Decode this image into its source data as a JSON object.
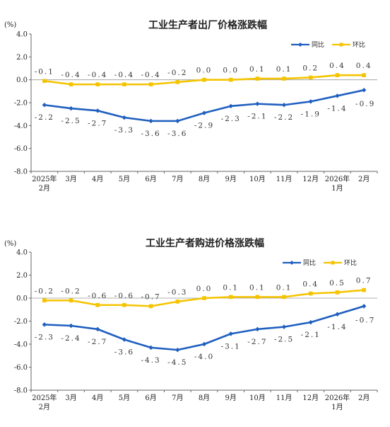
{
  "colors": {
    "yoy": "#1f5fbf",
    "mom": "#f5c400",
    "axis": "#666666",
    "zero_line": "#999999"
  },
  "chart_data": [
    {
      "type": "line",
      "title": "工业生产者出厂价格涨跌幅",
      "unit": "(%)",
      "ylim": [
        -8.0,
        4.0
      ],
      "yticks": [
        "4.0",
        "2.0",
        "0.0",
        "-2.0",
        "-4.0",
        "-6.0",
        "-8.0"
      ],
      "ytick_values": [
        4,
        2,
        0,
        -2,
        -4,
        -6,
        -8
      ],
      "categories": [
        [
          "2025年",
          "2月"
        ],
        [
          "3月"
        ],
        [
          "4月"
        ],
        [
          "5月"
        ],
        [
          "6月"
        ],
        [
          "7月"
        ],
        [
          "8月"
        ],
        [
          "9月"
        ],
        [
          "10月"
        ],
        [
          "11月"
        ],
        [
          "12月"
        ],
        [
          "2026年",
          "1月"
        ],
        [
          "2月"
        ]
      ],
      "legend_position": "top-right",
      "series": [
        {
          "name": "同比",
          "values": [
            -2.2,
            -2.5,
            -2.7,
            -3.3,
            -3.6,
            -3.6,
            -2.9,
            -2.3,
            -2.1,
            -2.2,
            -1.9,
            -1.4,
            -0.9
          ]
        },
        {
          "name": "环比",
          "values": [
            -0.1,
            -0.4,
            -0.4,
            -0.4,
            -0.4,
            -0.2,
            0.0,
            0.0,
            0.1,
            0.1,
            0.2,
            0.4,
            0.4
          ]
        }
      ],
      "point_labels": {
        "同比": [
          "-2.2",
          "-2.5",
          "-2.7",
          "-3.3",
          "-3.6",
          "-3.6",
          "-2.9",
          "-2.3",
          "-2.1",
          "-2.2",
          "-1.9",
          "-1.4",
          "-0.9"
        ],
        "环比": [
          "-0.1",
          "-0.4",
          "-0.4",
          "-0.4",
          "-0.4",
          "-0.2",
          "0.0",
          "0.0",
          "0.1",
          "0.1",
          "0.2",
          "0.4",
          "0.4"
        ]
      }
    },
    {
      "type": "line",
      "title": "工业生产者购进价格涨跌幅",
      "unit": "(%)",
      "ylim": [
        -8.0,
        4.0
      ],
      "yticks": [
        "4.0",
        "2.0",
        "0.0",
        "-2.0",
        "-4.0",
        "-6.0",
        "-8.0"
      ],
      "ytick_values": [
        4,
        2,
        0,
        -2,
        -4,
        -6,
        -8
      ],
      "categories": [
        [
          "2025年",
          "2月"
        ],
        [
          "3月"
        ],
        [
          "4月"
        ],
        [
          "5月"
        ],
        [
          "6月"
        ],
        [
          "7月"
        ],
        [
          "8月"
        ],
        [
          "9月"
        ],
        [
          "10月"
        ],
        [
          "11月"
        ],
        [
          "12月"
        ],
        [
          "2026年",
          "1月"
        ],
        [
          "2月"
        ]
      ],
      "legend_position": "top-right",
      "series": [
        {
          "name": "同比",
          "values": [
            -2.3,
            -2.4,
            -2.7,
            -3.6,
            -4.3,
            -4.5,
            -4.0,
            -3.1,
            -2.7,
            -2.5,
            -2.1,
            -1.4,
            -0.7
          ]
        },
        {
          "name": "环比",
          "values": [
            -0.2,
            -0.2,
            -0.6,
            -0.6,
            -0.7,
            -0.3,
            0.0,
            0.1,
            0.1,
            0.1,
            0.4,
            0.5,
            0.7
          ]
        }
      ],
      "point_labels": {
        "同比": [
          "-2.3",
          "-2.4",
          "-2.7",
          "-3.6",
          "-4.3",
          "-4.5",
          "-4.0",
          "-3.1",
          "-2.7",
          "-2.5",
          "-2.1",
          "-1.4",
          "-0.7"
        ],
        "环比": [
          "-0.2",
          "-0.2",
          "-0.6",
          "-0.6",
          "-0.7",
          "-0.3",
          "0.0",
          "0.1",
          "0.1",
          "0.1",
          "0.4",
          "0.5",
          "0.7"
        ]
      }
    }
  ]
}
